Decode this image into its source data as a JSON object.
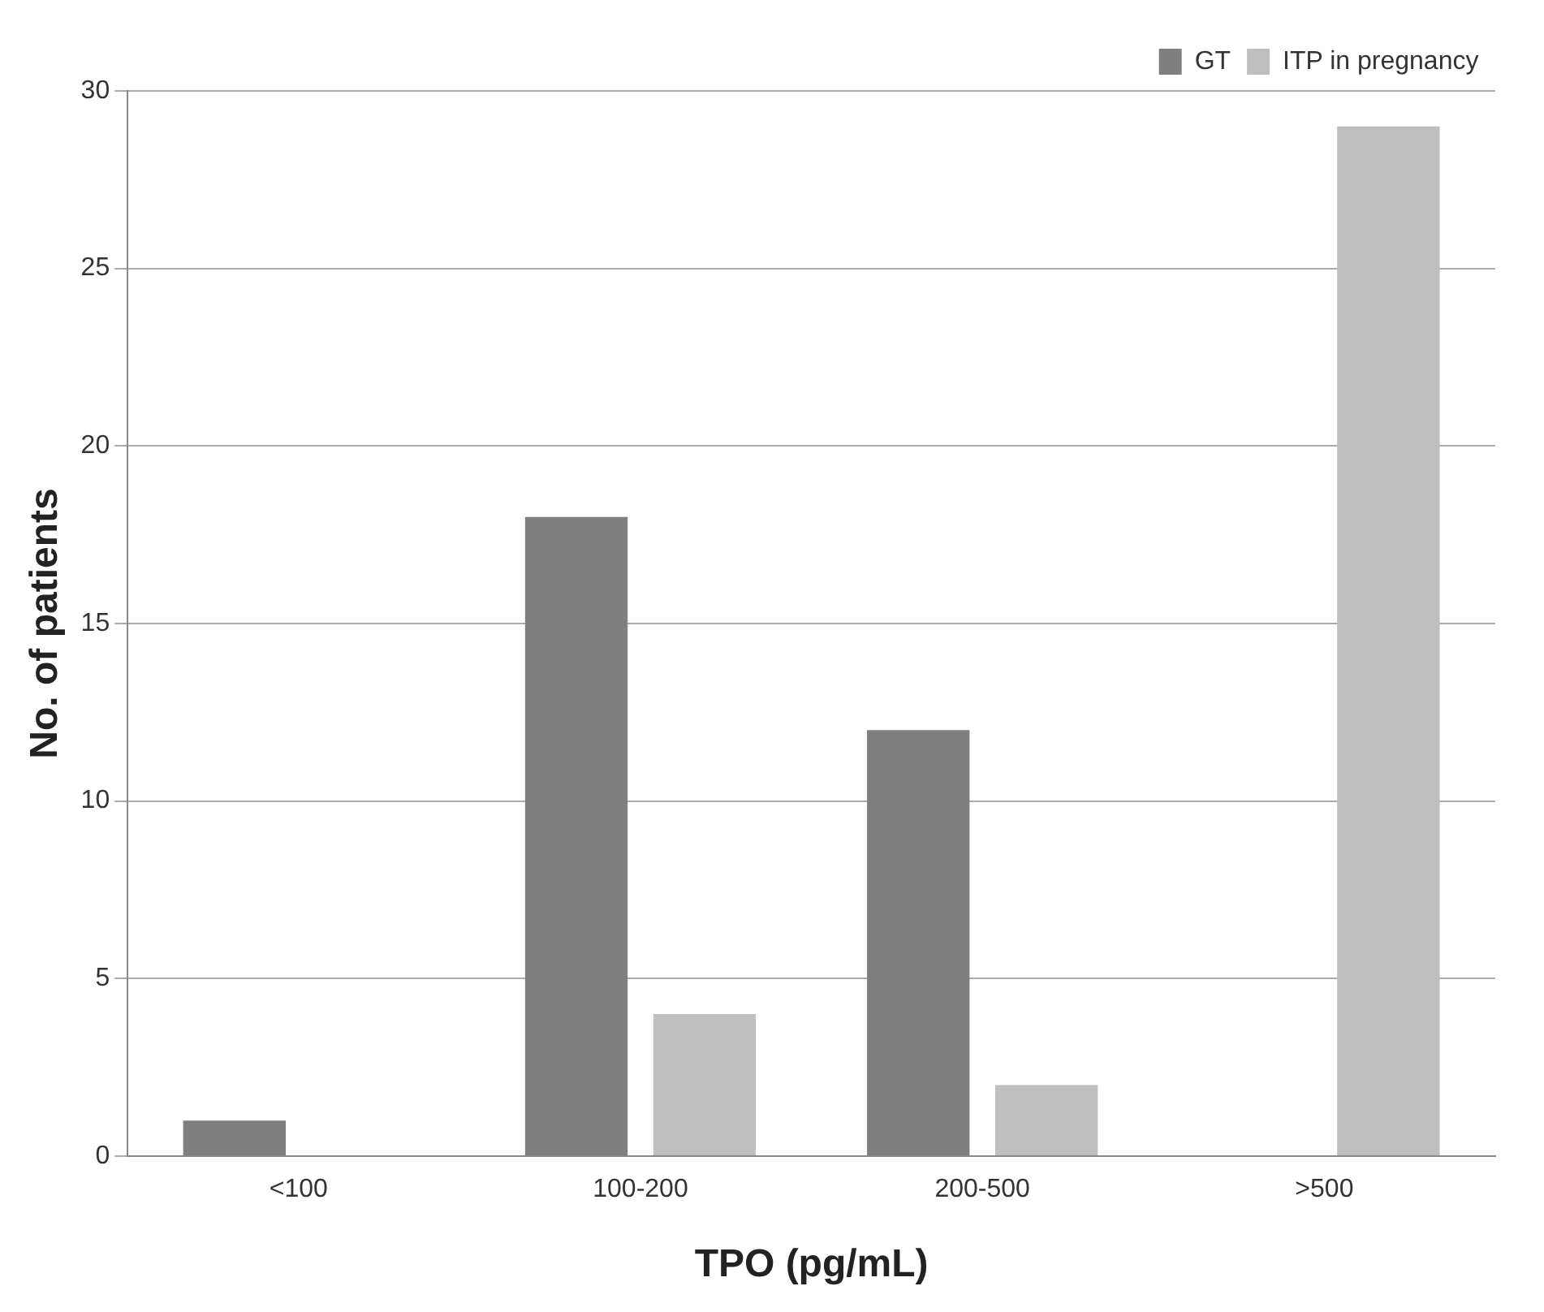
{
  "chart_data": {
    "type": "bar",
    "xlabel": "TPO (pg/mL)",
    "ylabel": "No. of patients",
    "categories": [
      "<100",
      "100-200",
      "200-500",
      ">500"
    ],
    "series": [
      {
        "name": "GT",
        "color": "#7f7f7f",
        "values": [
          1,
          18,
          12,
          0
        ]
      },
      {
        "name": "ITP in pregnancy",
        "color": "#bfbfbf",
        "values": [
          0,
          4,
          2,
          29
        ]
      }
    ],
    "ylim": [
      0,
      30
    ],
    "yticks": [
      0,
      5,
      10,
      15,
      20,
      25,
      30
    ],
    "grid": "y",
    "legend": "top right"
  }
}
